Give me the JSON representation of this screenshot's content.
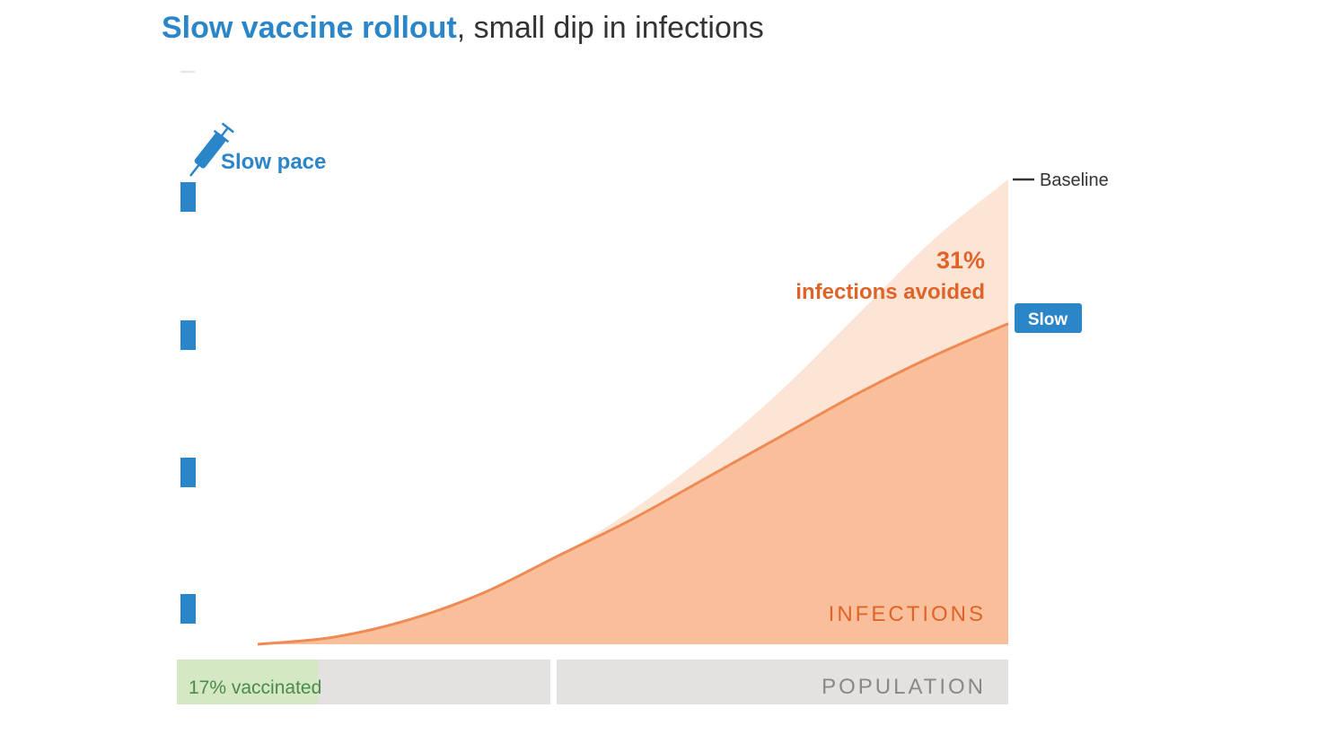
{
  "title": {
    "accent": "Slow vaccine rollout",
    "rest": ", small dip in infections"
  },
  "pace": {
    "label": "Slow pace",
    "icon": "syringe-icon"
  },
  "labels": {
    "baseline": "Baseline",
    "slow": "Slow",
    "percent": "31%",
    "avoided": "infections avoided",
    "infections": "INFECTIONS",
    "population": "POPULATION",
    "vaccinated": "17% vaccinated"
  },
  "colors": {
    "accent_blue": "#2a86c8",
    "slow_fill": "#f9bf9b",
    "slow_line": "#f08a55",
    "baseline_fill": "#fde5d6",
    "orange_text": "#e0632a",
    "population_bar": "#e4e2e1",
    "vaccinated_bar": "#d4e8c4"
  },
  "chart_data": {
    "type": "area",
    "title": "Slow vaccine rollout, small dip in infections",
    "x": [
      0,
      0.1,
      0.2,
      0.3,
      0.4,
      0.5,
      0.6,
      0.7,
      0.8,
      0.9,
      1.0
    ],
    "series": [
      {
        "name": "Baseline",
        "values": [
          0,
          0.015,
          0.052,
          0.11,
          0.19,
          0.29,
          0.41,
          0.55,
          0.71,
          0.87,
          1.0
        ]
      },
      {
        "name": "Slow",
        "values": [
          0,
          0.015,
          0.052,
          0.11,
          0.19,
          0.27,
          0.36,
          0.45,
          0.54,
          0.62,
          0.69
        ]
      }
    ],
    "vaccinated_fraction": 0.17,
    "infections_avoided_pct": 31,
    "ylim": [
      0,
      1
    ],
    "grid": false
  }
}
